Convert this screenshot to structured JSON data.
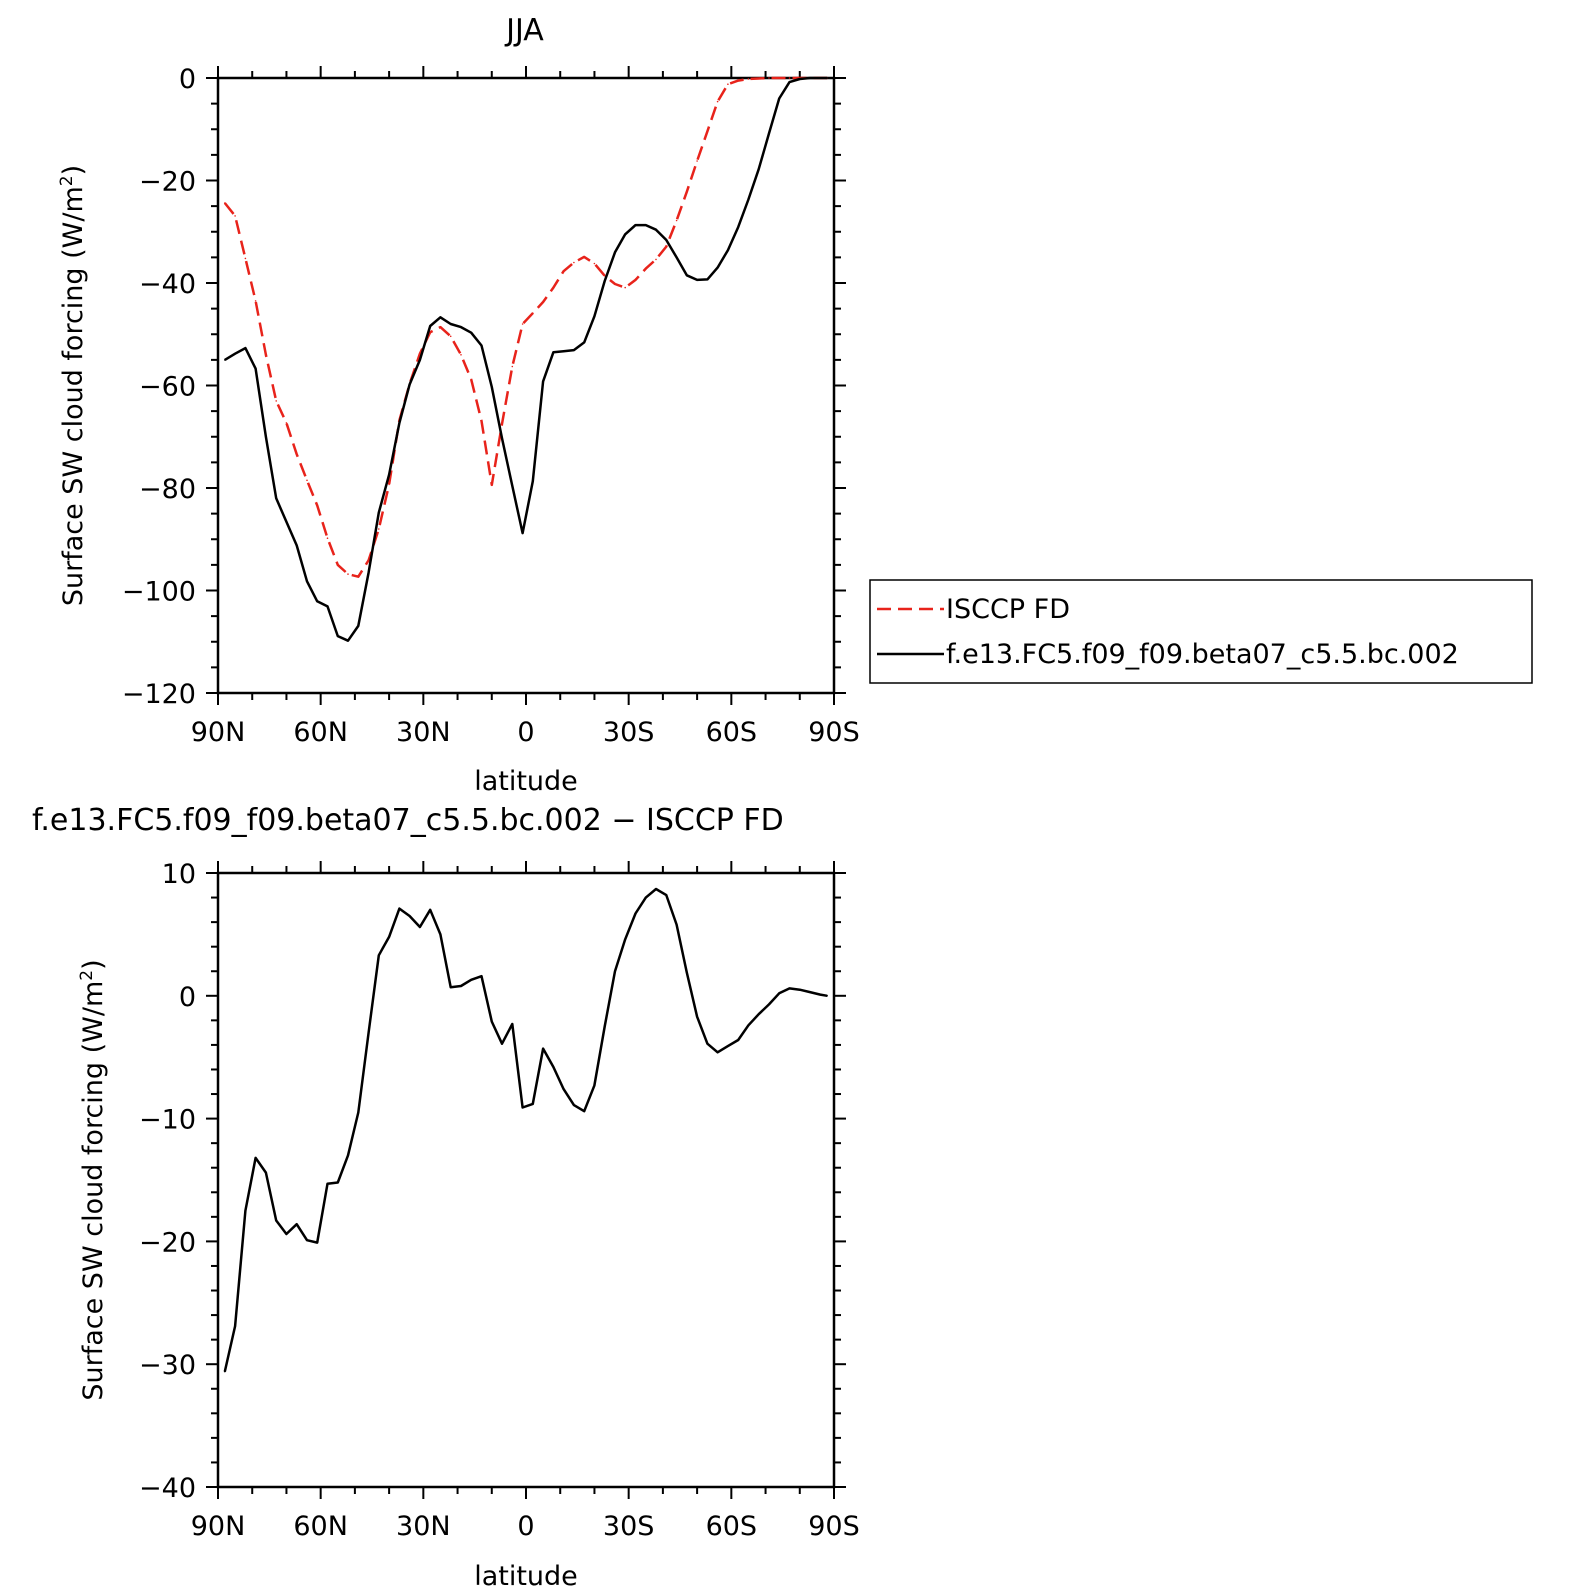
{
  "chart_data": [
    {
      "type": "line",
      "title": "JJA",
      "xlabel": "latitude",
      "ylabel_main": "Surface SW cloud forcing (W/m",
      "ylabel_sup": "2",
      "ylabel_tail": ")",
      "xlim": [
        90,
        -90
      ],
      "ylim": [
        -120,
        0
      ],
      "x_ticks": [
        90,
        60,
        30,
        0,
        -30,
        -60,
        -90
      ],
      "x_tick_labels": [
        "90N",
        "60N",
        "30N",
        "0",
        "30S",
        "60S",
        "90S"
      ],
      "y_ticks": [
        0,
        -20,
        -40,
        -60,
        -80,
        -100,
        -120
      ],
      "y_tick_labels": [
        "0",
        "−20",
        "−40",
        "−60",
        "−80",
        "−100",
        "−120"
      ],
      "legend_position": "right",
      "series": [
        {
          "name": "ISCCP FD",
          "color": "#e8231b",
          "dash": "dashed",
          "x": [
            88,
            85,
            82,
            79,
            76,
            73,
            70,
            67,
            64,
            61,
            58,
            55,
            52,
            49,
            46,
            43,
            40,
            37,
            34,
            31,
            28,
            25,
            22,
            19,
            16,
            13,
            10,
            7,
            4,
            1,
            -2,
            -5,
            -8,
            -11,
            -14,
            -17,
            -20,
            -23,
            -26,
            -29,
            -32,
            -35,
            -38,
            -41,
            -44,
            -47,
            -50,
            -53,
            -56,
            -59,
            -62,
            -65,
            -68,
            -71,
            -74,
            -77,
            -80,
            -83,
            -86,
            -88
          ],
          "y": [
            -24.4,
            -26.9,
            -35.2,
            -43.5,
            -54.0,
            -63.0,
            -67.3,
            -73.4,
            -78.5,
            -83.4,
            -89.8,
            -95.0,
            -96.8,
            -97.3,
            -94.1,
            -88.0,
            -79.3,
            -66.8,
            -59.7,
            -53.8,
            -49.6,
            -48.6,
            -50.4,
            -54.0,
            -58.8,
            -66.9,
            -79.4,
            -67.5,
            -56.3,
            -48.0,
            -45.9,
            -43.7,
            -40.9,
            -37.7,
            -36.0,
            -34.9,
            -36.2,
            -38.6,
            -40.2,
            -40.9,
            -39.4,
            -37.2,
            -35.4,
            -32.9,
            -27.8,
            -22.2,
            -16.2,
            -10.4,
            -4.6,
            -1.2,
            -0.5,
            -0.2,
            -0.1,
            0.0,
            0.0,
            0.0,
            0.0,
            0.0,
            0.0,
            0.0
          ]
        },
        {
          "name": "f.e13.FC5.f09_f09.beta07_c5.5.bc.002",
          "color": "#000000",
          "dash": "solid",
          "x": [
            88,
            85,
            82,
            79,
            76,
            73,
            70,
            67,
            64,
            61,
            58,
            55,
            52,
            49,
            46,
            43,
            40,
            37,
            34,
            31,
            28,
            25,
            22,
            19,
            16,
            13,
            10,
            7,
            4,
            1,
            -2,
            -5,
            -8,
            -11,
            -14,
            -17,
            -20,
            -23,
            -26,
            -29,
            -32,
            -35,
            -38,
            -41,
            -44,
            -47,
            -50,
            -53,
            -56,
            -59,
            -62,
            -65,
            -68,
            -71,
            -74,
            -77,
            -80,
            -83,
            -86,
            -88
          ],
          "y": [
            -55.0,
            -53.8,
            -52.7,
            -56.7,
            -70.0,
            -82.0,
            -86.6,
            -91.2,
            -98.2,
            -102.1,
            -103.1,
            -108.9,
            -109.8,
            -106.9,
            -96.5,
            -84.8,
            -77.4,
            -67.3,
            -59.8,
            -55.0,
            -48.4,
            -46.7,
            -48.0,
            -48.6,
            -49.7,
            -52.2,
            -60.3,
            -70.3,
            -79.6,
            -88.8,
            -78.7,
            -59.2,
            -53.5,
            -53.3,
            -53.1,
            -51.6,
            -46.5,
            -39.6,
            -34.0,
            -30.5,
            -28.7,
            -28.7,
            -29.6,
            -31.6,
            -35.0,
            -38.5,
            -39.4,
            -39.3,
            -37.0,
            -33.6,
            -29.1,
            -23.7,
            -17.8,
            -10.8,
            -4.0,
            -0.8,
            -0.2,
            0.0,
            0.0,
            0.0
          ]
        }
      ]
    },
    {
      "type": "line",
      "title": "f.e13.FC5.f09_f09.beta07_c5.5.bc.002 − ISCCP FD",
      "xlabel": "latitude",
      "ylabel_main": "Surface SW cloud forcing (W/m",
      "ylabel_sup": "2",
      "ylabel_tail": ")",
      "xlim": [
        90,
        -90
      ],
      "ylim": [
        -40,
        10
      ],
      "x_ticks": [
        90,
        60,
        30,
        0,
        -30,
        -60,
        -90
      ],
      "x_tick_labels": [
        "90N",
        "60N",
        "30N",
        "0",
        "30S",
        "60S",
        "90S"
      ],
      "y_ticks": [
        10,
        0,
        -10,
        -20,
        -30,
        -40
      ],
      "y_tick_labels": [
        "10",
        "0",
        "−10",
        "−20",
        "−30",
        "−40"
      ],
      "series": [
        {
          "color": "#000000",
          "dash": "solid",
          "x": [
            88,
            85,
            82,
            79,
            76,
            73,
            70,
            67,
            64,
            61,
            58,
            55,
            52,
            49,
            46,
            43,
            40,
            37,
            34,
            31,
            28,
            25,
            22,
            19,
            16,
            13,
            10,
            7,
            4,
            1,
            -2,
            -5,
            -8,
            -11,
            -14,
            -17,
            -20,
            -23,
            -26,
            -29,
            -32,
            -35,
            -38,
            -41,
            -44,
            -47,
            -50,
            -53,
            -56,
            -59,
            -62,
            -65,
            -68,
            -71,
            -74,
            -77,
            -80,
            -83,
            -86,
            -88
          ],
          "y": [
            -30.6,
            -26.9,
            -17.5,
            -13.2,
            -14.4,
            -18.3,
            -19.4,
            -18.6,
            -19.9,
            -20.1,
            -15.3,
            -15.2,
            -13.0,
            -9.5,
            -3.0,
            3.3,
            4.8,
            7.1,
            6.5,
            5.6,
            7.0,
            5.0,
            0.7,
            0.8,
            1.3,
            1.6,
            -2.1,
            -3.9,
            -2.3,
            -9.1,
            -8.8,
            -4.3,
            -5.8,
            -7.6,
            -8.9,
            -9.4,
            -7.3,
            -2.5,
            2.0,
            4.6,
            6.7,
            8.0,
            8.7,
            8.2,
            5.8,
            1.9,
            -1.7,
            -3.9,
            -4.6,
            -4.1,
            -3.6,
            -2.4,
            -1.5,
            -0.7,
            0.2,
            0.6,
            0.5,
            0.3,
            0.1,
            0.0
          ]
        }
      ]
    }
  ]
}
